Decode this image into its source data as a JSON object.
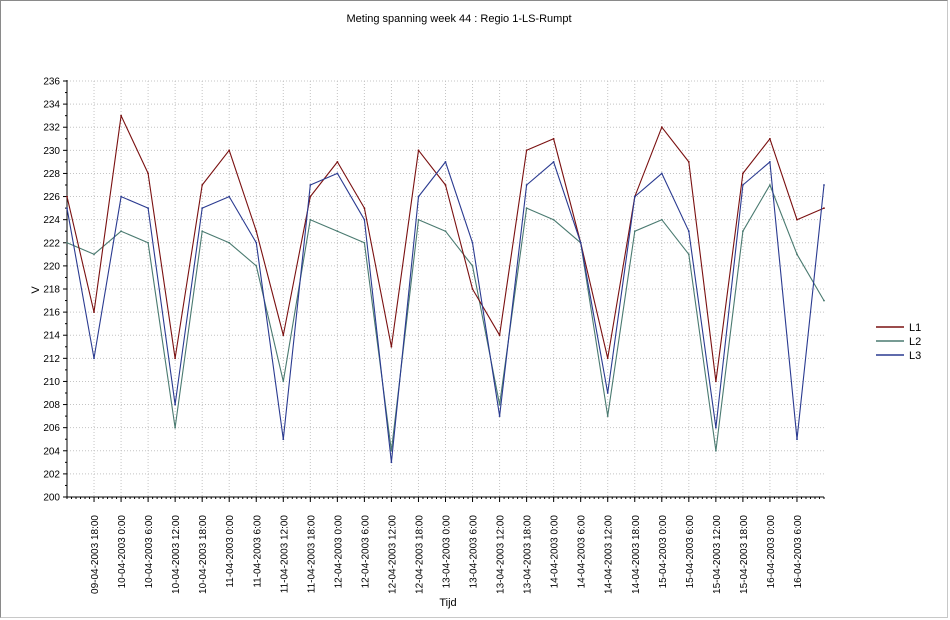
{
  "chart_data": {
    "type": "line",
    "title": "Meting spanning week 44 :  Regio 1-LS-Rumpt",
    "xlabel": "Tijd",
    "ylabel": "V",
    "ylim": [
      200,
      236
    ],
    "y_ticks": [
      200,
      202,
      204,
      206,
      208,
      210,
      212,
      214,
      216,
      218,
      220,
      222,
      224,
      226,
      228,
      230,
      232,
      234,
      236
    ],
    "xlim": [
      "2003-04-09 12:00",
      "2003-04-16 12:00"
    ],
    "x_tick_labels": [
      "09-04-2003 18:00",
      "10-04-2003 0:00",
      "10-04-2003 6:00",
      "10-04-2003 12:00",
      "10-04-2003 18:00",
      "11-04-2003 0:00",
      "11-04-2003 6:00",
      "11-04-2003 12:00",
      "11-04-2003 18:00",
      "12-04-2003 0:00",
      "12-04-2003 6:00",
      "12-04-2003 12:00",
      "12-04-2003 18:00",
      "13-04-2003 0:00",
      "13-04-2003 6:00",
      "13-04-2003 12:00",
      "13-04-2003 18:00",
      "14-04-2003 0:00",
      "14-04-2003 6:00",
      "14-04-2003 12:00",
      "14-04-2003 18:00",
      "15-04-2003 0:00",
      "15-04-2003 6:00",
      "15-04-2003 12:00",
      "15-04-2003 18:00",
      "16-04-2003 0:00",
      "16-04-2003 6:00"
    ],
    "grid": true,
    "legend_position": "right",
    "series": [
      {
        "name": "L1",
        "color": "#7a1010",
        "x": [
          "2003-04-09 12:00",
          "2003-04-09 18:00",
          "2003-04-10 00:00",
          "2003-04-10 06:00",
          "2003-04-10 12:00",
          "2003-04-10 18:00",
          "2003-04-11 00:00",
          "2003-04-11 06:00",
          "2003-04-11 12:00",
          "2003-04-11 18:00",
          "2003-04-12 00:00",
          "2003-04-12 06:00",
          "2003-04-12 12:00",
          "2003-04-12 18:00",
          "2003-04-13 00:00",
          "2003-04-13 06:00",
          "2003-04-13 12:00",
          "2003-04-13 18:00",
          "2003-04-14 00:00",
          "2003-04-14 06:00",
          "2003-04-14 12:00",
          "2003-04-14 18:00",
          "2003-04-15 00:00",
          "2003-04-15 06:00",
          "2003-04-15 12:00",
          "2003-04-15 18:00",
          "2003-04-16 00:00",
          "2003-04-16 06:00",
          "2003-04-16 12:00"
        ],
        "values": [
          226,
          216,
          233,
          228,
          212,
          227,
          230,
          223,
          214,
          226,
          229,
          225,
          213,
          230,
          227,
          218,
          214,
          230,
          231,
          222,
          212,
          226,
          232,
          229,
          210,
          228,
          231,
          224,
          225
        ]
      },
      {
        "name": "L2",
        "color": "#4a7a70",
        "x": [
          "2003-04-09 12:00",
          "2003-04-09 18:00",
          "2003-04-10 00:00",
          "2003-04-10 06:00",
          "2003-04-10 12:00",
          "2003-04-10 18:00",
          "2003-04-11 00:00",
          "2003-04-11 06:00",
          "2003-04-11 12:00",
          "2003-04-11 18:00",
          "2003-04-12 00:00",
          "2003-04-12 06:00",
          "2003-04-12 12:00",
          "2003-04-12 18:00",
          "2003-04-13 00:00",
          "2003-04-13 06:00",
          "2003-04-13 12:00",
          "2003-04-13 18:00",
          "2003-04-14 00:00",
          "2003-04-14 06:00",
          "2003-04-14 12:00",
          "2003-04-14 18:00",
          "2003-04-15 00:00",
          "2003-04-15 06:00",
          "2003-04-15 12:00",
          "2003-04-15 18:00",
          "2003-04-16 00:00",
          "2003-04-16 06:00",
          "2003-04-16 12:00"
        ],
        "values": [
          222,
          221,
          223,
          222,
          206,
          223,
          222,
          220,
          210,
          224,
          223,
          222,
          204,
          224,
          223,
          220,
          208,
          225,
          224,
          222,
          207,
          223,
          224,
          221,
          204,
          223,
          227,
          221,
          217
        ]
      },
      {
        "name": "L3",
        "color": "#2a3a90",
        "x": [
          "2003-04-09 12:00",
          "2003-04-09 18:00",
          "2003-04-10 00:00",
          "2003-04-10 06:00",
          "2003-04-10 12:00",
          "2003-04-10 18:00",
          "2003-04-11 00:00",
          "2003-04-11 06:00",
          "2003-04-11 12:00",
          "2003-04-11 18:00",
          "2003-04-12 00:00",
          "2003-04-12 06:00",
          "2003-04-12 12:00",
          "2003-04-12 18:00",
          "2003-04-13 00:00",
          "2003-04-13 06:00",
          "2003-04-13 12:00",
          "2003-04-13 18:00",
          "2003-04-14 00:00",
          "2003-04-14 06:00",
          "2003-04-14 12:00",
          "2003-04-14 18:00",
          "2003-04-15 00:00",
          "2003-04-15 06:00",
          "2003-04-15 12:00",
          "2003-04-15 18:00",
          "2003-04-16 00:00",
          "2003-04-16 06:00",
          "2003-04-16 12:00"
        ],
        "values": [
          225,
          212,
          226,
          225,
          208,
          225,
          226,
          222,
          205,
          227,
          228,
          224,
          203,
          226,
          229,
          222,
          207,
          227,
          229,
          222,
          209,
          226,
          228,
          223,
          206,
          227,
          229,
          205,
          227
        ]
      }
    ]
  }
}
